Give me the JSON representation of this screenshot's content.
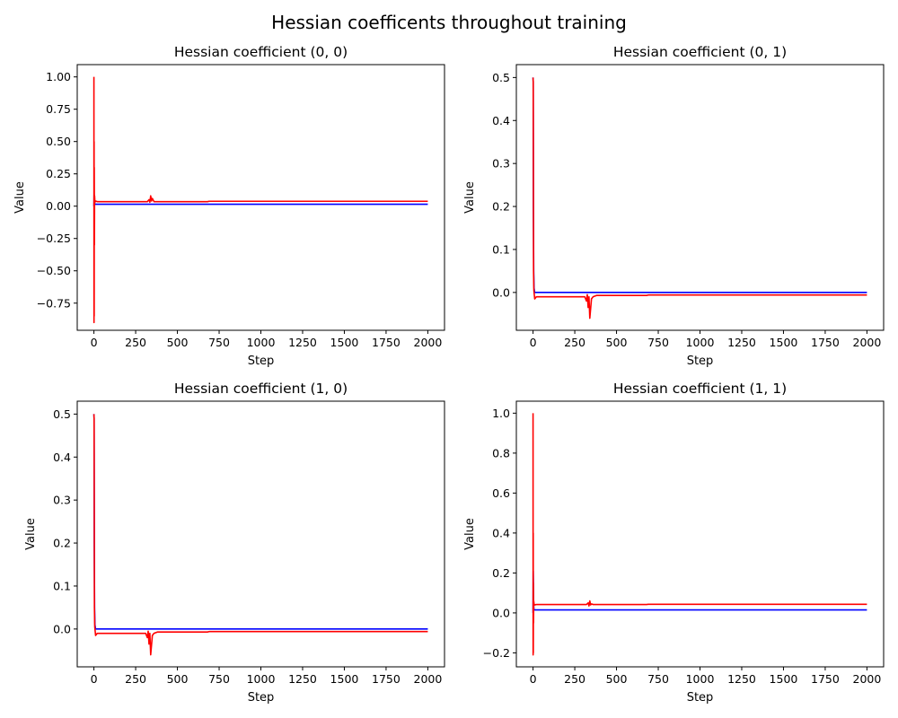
{
  "suptitle": "Hessian coefficents throughout training",
  "colors": {
    "series_a": "#0000ff",
    "series_b": "#ff0000"
  },
  "chart_data": [
    {
      "type": "line",
      "title": "Hessian coefficient (0, 0)",
      "xlabel": "Step",
      "ylabel": "Value",
      "xlim": [
        -100,
        2100
      ],
      "ylim": [
        -0.96,
        1.095
      ],
      "xticks": [
        0,
        250,
        500,
        750,
        1000,
        1250,
        1500,
        1750,
        2000
      ],
      "yticks": [
        -0.75,
        -0.5,
        -0.25,
        0.0,
        0.25,
        0.5,
        0.75,
        1.0
      ],
      "ytick_labels": [
        "−0.75",
        "−0.50",
        "−0.25",
        "0.00",
        "0.25",
        "0.50",
        "0.75",
        "1.00"
      ],
      "grid": false,
      "series": [
        {
          "color": "#0000ff",
          "x": [
            0,
            1,
            2,
            3,
            5,
            8,
            20,
            2000
          ],
          "y": [
            0.0,
            0.09,
            0.05,
            0.03,
            0.02,
            0.015,
            0.015,
            0.015
          ]
        },
        {
          "color": "#ff0000",
          "x": [
            0,
            0.5,
            1,
            1.5,
            2,
            3,
            4,
            6,
            10,
            20,
            320,
            330,
            335,
            340,
            345,
            350,
            360,
            680,
            690,
            2000
          ],
          "y": [
            1.0,
            -0.9,
            0.5,
            -0.85,
            0.3,
            -0.3,
            0.08,
            0.03,
            0.04,
            0.035,
            0.035,
            0.05,
            0.03,
            0.08,
            0.04,
            0.06,
            0.035,
            0.035,
            0.038,
            0.038
          ]
        }
      ]
    },
    {
      "type": "line",
      "title": "Hessian coefficient (0, 1)",
      "xlabel": "Step",
      "ylabel": "Value",
      "xlim": [
        -100,
        2100
      ],
      "ylim": [
        -0.088,
        0.53
      ],
      "xticks": [
        0,
        250,
        500,
        750,
        1000,
        1250,
        1500,
        1750,
        2000
      ],
      "yticks": [
        0.0,
        0.1,
        0.2,
        0.3,
        0.4,
        0.5
      ],
      "ytick_labels": [
        "0.0",
        "0.1",
        "0.2",
        "0.3",
        "0.4",
        "0.5"
      ],
      "grid": false,
      "series": [
        {
          "color": "#0000ff",
          "x": [
            0,
            1,
            2,
            4,
            6,
            10,
            2000
          ],
          "y": [
            0.5,
            0.49,
            0.2,
            0.05,
            0.01,
            0.0,
            0.0
          ]
        },
        {
          "color": "#ff0000",
          "x": [
            0,
            1,
            2,
            3,
            5,
            10,
            20,
            310,
            320,
            325,
            330,
            335,
            340,
            350,
            360,
            380,
            680,
            690,
            2000
          ],
          "y": [
            0.5,
            0.49,
            0.3,
            0.05,
            0.005,
            -0.015,
            -0.01,
            -0.01,
            -0.02,
            -0.005,
            -0.035,
            -0.01,
            -0.06,
            -0.015,
            -0.01,
            -0.007,
            -0.007,
            -0.006,
            -0.006
          ]
        }
      ]
    },
    {
      "type": "line",
      "title": "Hessian coefficient (1, 0)",
      "xlabel": "Step",
      "ylabel": "Value",
      "xlim": [
        -100,
        2100
      ],
      "ylim": [
        -0.088,
        0.53
      ],
      "xticks": [
        0,
        250,
        500,
        750,
        1000,
        1250,
        1500,
        1750,
        2000
      ],
      "yticks": [
        0.0,
        0.1,
        0.2,
        0.3,
        0.4,
        0.5
      ],
      "ytick_labels": [
        "0.0",
        "0.1",
        "0.2",
        "0.3",
        "0.4",
        "0.5"
      ],
      "grid": false,
      "series": [
        {
          "color": "#0000ff",
          "x": [
            0,
            1,
            2,
            4,
            6,
            10,
            2000
          ],
          "y": [
            0.5,
            0.49,
            0.2,
            0.05,
            0.01,
            0.0,
            0.0
          ]
        },
        {
          "color": "#ff0000",
          "x": [
            0,
            1,
            2,
            3,
            5,
            10,
            20,
            310,
            320,
            325,
            330,
            335,
            340,
            350,
            360,
            380,
            680,
            690,
            2000
          ],
          "y": [
            0.5,
            0.49,
            0.3,
            0.05,
            0.005,
            -0.015,
            -0.01,
            -0.01,
            -0.02,
            -0.005,
            -0.035,
            -0.01,
            -0.06,
            -0.015,
            -0.01,
            -0.007,
            -0.007,
            -0.006,
            -0.006
          ]
        }
      ]
    },
    {
      "type": "line",
      "title": "Hessian coefficient (1, 1)",
      "xlabel": "Step",
      "ylabel": "Value",
      "xlim": [
        -100,
        2100
      ],
      "ylim": [
        -0.27,
        1.06
      ],
      "xticks": [
        0,
        250,
        500,
        750,
        1000,
        1250,
        1500,
        1750,
        2000
      ],
      "yticks": [
        -0.2,
        0.0,
        0.2,
        0.4,
        0.6,
        0.8,
        1.0
      ],
      "ytick_labels": [
        "−0.2",
        "0.0",
        "0.2",
        "0.4",
        "0.6",
        "0.8",
        "1.0"
      ],
      "grid": false,
      "series": [
        {
          "color": "#0000ff",
          "x": [
            0,
            1,
            2,
            3,
            5,
            8,
            20,
            2000
          ],
          "y": [
            0.0,
            0.21,
            0.15,
            0.05,
            0.02,
            0.015,
            0.015,
            0.015
          ]
        },
        {
          "color": "#ff0000",
          "x": [
            0,
            0.5,
            1,
            1.5,
            2,
            3,
            4,
            6,
            10,
            20,
            320,
            330,
            335,
            340,
            345,
            350,
            360,
            680,
            690,
            2000
          ],
          "y": [
            1.0,
            -0.21,
            0.4,
            -0.2,
            0.15,
            -0.05,
            0.06,
            0.045,
            0.04,
            0.042,
            0.042,
            0.05,
            0.035,
            0.06,
            0.04,
            0.045,
            0.042,
            0.042,
            0.043,
            0.043
          ]
        }
      ]
    }
  ]
}
